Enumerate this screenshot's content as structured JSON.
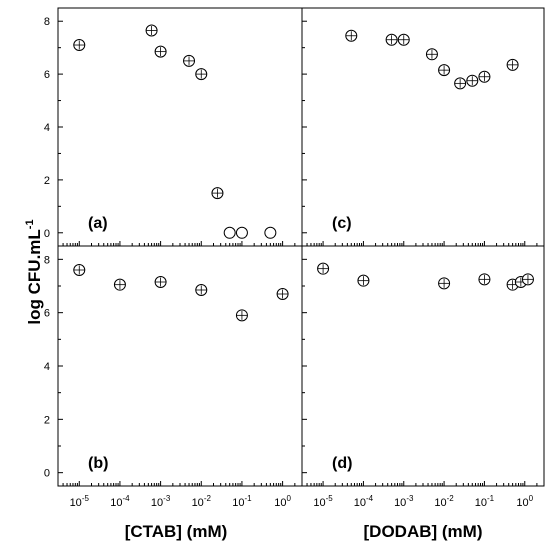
{
  "figure": {
    "ylabel": {
      "main": "log CFU.mL",
      "sup": "-1"
    },
    "xlabels": [
      "[CTAB] (mM)",
      "[DODAB] (mM)"
    ]
  },
  "chart_data": [
    {
      "type": "scatter",
      "panel": "(a)",
      "xscale": "log",
      "xlim": [
        3e-06,
        3
      ],
      "ylim": [
        -0.5,
        8.5
      ],
      "yticks": [
        0,
        2,
        4,
        6,
        8
      ],
      "points": [
        {
          "x": 1e-05,
          "y": 7.1
        },
        {
          "x": 0.0006,
          "y": 7.65
        },
        {
          "x": 0.001,
          "y": 6.85
        },
        {
          "x": 0.005,
          "y": 6.5
        },
        {
          "x": 0.01,
          "y": 6.0
        },
        {
          "x": 0.025,
          "y": 1.5
        },
        {
          "x": 0.05,
          "y": 0.0
        },
        {
          "x": 0.1,
          "y": 0.0
        },
        {
          "x": 0.5,
          "y": 0.0
        }
      ]
    },
    {
      "type": "scatter",
      "panel": "(c)",
      "xscale": "log",
      "xlim": [
        3e-06,
        3
      ],
      "ylim": [
        -0.5,
        8.5
      ],
      "yticks": [
        0,
        2,
        4,
        6,
        8
      ],
      "points": [
        {
          "x": 5e-05,
          "y": 7.45
        },
        {
          "x": 0.0005,
          "y": 7.3
        },
        {
          "x": 0.001,
          "y": 7.3
        },
        {
          "x": 0.005,
          "y": 6.75
        },
        {
          "x": 0.01,
          "y": 6.15
        },
        {
          "x": 0.025,
          "y": 5.65
        },
        {
          "x": 0.05,
          "y": 5.75
        },
        {
          "x": 0.1,
          "y": 5.9
        },
        {
          "x": 0.5,
          "y": 6.35
        }
      ]
    },
    {
      "type": "scatter",
      "panel": "(b)",
      "xscale": "log",
      "xlim": [
        3e-06,
        3
      ],
      "ylim": [
        -0.5,
        8.5
      ],
      "yticks": [
        0,
        2,
        4,
        6,
        8
      ],
      "xticks": [
        "10-5",
        "10-4",
        "10-3",
        "10-2",
        "10-1",
        "100"
      ],
      "points": [
        {
          "x": 1e-05,
          "y": 7.6
        },
        {
          "x": 0.0001,
          "y": 7.05
        },
        {
          "x": 0.001,
          "y": 7.15
        },
        {
          "x": 0.01,
          "y": 6.85
        },
        {
          "x": 0.1,
          "y": 5.9
        },
        {
          "x": 1,
          "y": 6.7
        }
      ]
    },
    {
      "type": "scatter",
      "panel": "(d)",
      "xscale": "log",
      "xlim": [
        3e-06,
        3
      ],
      "ylim": [
        -0.5,
        8.5
      ],
      "yticks": [
        0,
        2,
        4,
        6,
        8
      ],
      "xticks": [
        "10-5",
        "10-4",
        "10-3",
        "10-2",
        "10-1",
        "100"
      ],
      "points": [
        {
          "x": 1e-05,
          "y": 7.65
        },
        {
          "x": 0.0001,
          "y": 7.2
        },
        {
          "x": 0.01,
          "y": 7.1
        },
        {
          "x": 0.1,
          "y": 7.25
        },
        {
          "x": 0.5,
          "y": 7.05
        },
        {
          "x": 0.8,
          "y": 7.15
        },
        {
          "x": 1.2,
          "y": 7.25
        }
      ]
    }
  ]
}
